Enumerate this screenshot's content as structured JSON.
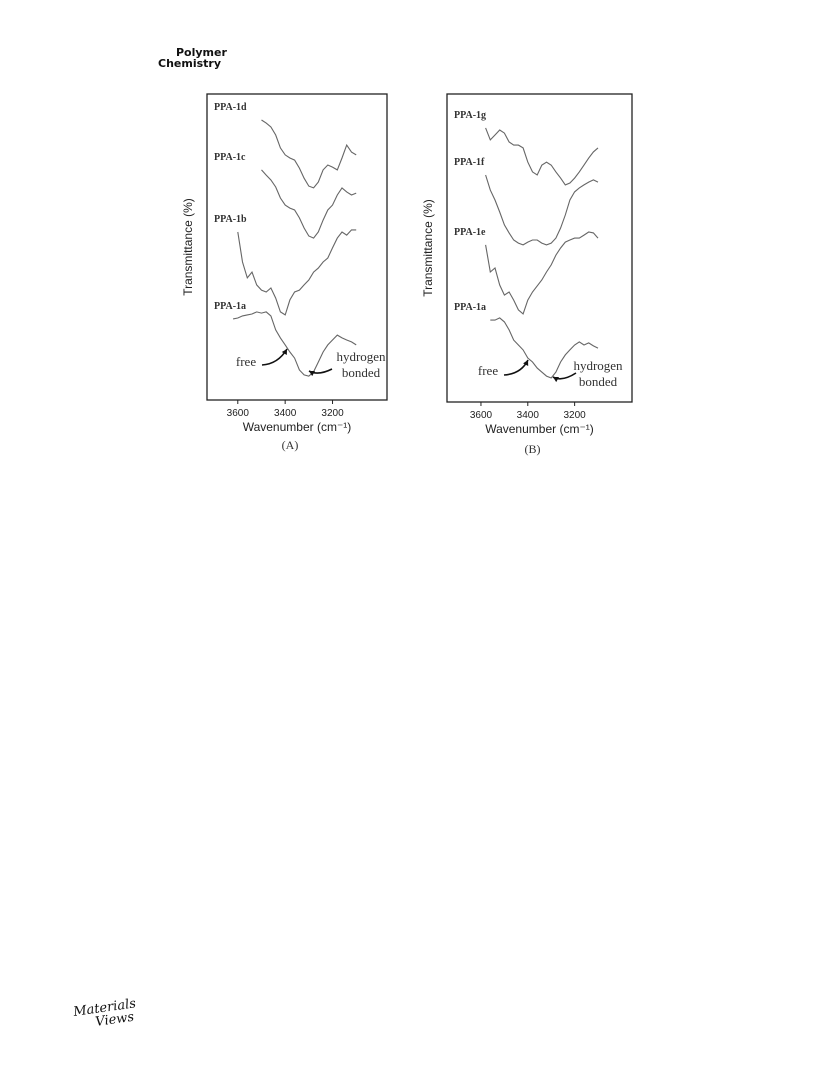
{
  "header": {
    "line1": "Polymer",
    "line2": "Chemistry"
  },
  "footer": {
    "logo_line1": "Materials",
    "logo_line2": "Views"
  },
  "chart_data": [
    {
      "type": "line",
      "caption": "(A)",
      "x_label": "Wavenumber (cm⁻¹)",
      "y_label": "Transmittance (%)",
      "xlim": [
        3730,
        2970
      ],
      "xticks": [
        3600,
        3400,
        3200
      ],
      "ylim": [
        0,
        100
      ],
      "x": [
        3620,
        3600,
        3580,
        3560,
        3540,
        3520,
        3500,
        3480,
        3460,
        3440,
        3420,
        3400,
        3380,
        3360,
        3340,
        3320,
        3300,
        3280,
        3260,
        3240,
        3220,
        3200,
        3180,
        3160,
        3140,
        3120,
        3100
      ],
      "series": [
        {
          "name": "PPA-1d",
          "color": "#666666",
          "values": [
            null,
            null,
            null,
            null,
            null,
            null,
            91.5,
            90.5,
            89.2,
            86.6,
            82.4,
            80.1,
            79.1,
            78.4,
            75.8,
            72.5,
            69.9,
            69.3,
            71.2,
            75.2,
            76.8,
            76.1,
            75.2,
            79.1,
            83.3,
            81.0,
            80.1
          ]
        },
        {
          "name": "PPA-1c",
          "color": "#666666",
          "values": [
            null,
            null,
            null,
            null,
            null,
            null,
            75.2,
            73.5,
            71.9,
            69.6,
            66.0,
            63.7,
            62.7,
            62.1,
            59.5,
            56.2,
            53.6,
            52.9,
            54.9,
            58.8,
            62.1,
            63.7,
            67.0,
            69.3,
            68.0,
            67.0,
            67.6
          ]
        },
        {
          "name": "PPA-1b",
          "color": "#666666",
          "values": [
            null,
            54.9,
            45.1,
            39.9,
            41.8,
            37.6,
            35.9,
            35.3,
            36.6,
            33.3,
            28.8,
            27.8,
            32.7,
            35.3,
            35.9,
            37.6,
            39.2,
            41.8,
            43.1,
            45.1,
            46.4,
            49.7,
            52.9,
            54.9,
            53.9,
            55.6,
            55.6
          ]
        },
        {
          "name": "PPA-1a",
          "color": "#666666",
          "values": [
            26.5,
            26.8,
            27.5,
            27.8,
            28.1,
            28.8,
            28.4,
            28.8,
            27.5,
            22.9,
            20.3,
            18.0,
            15.7,
            13.7,
            9.8,
            8.2,
            7.8,
            9.2,
            12.4,
            15.7,
            18.0,
            19.6,
            21.2,
            20.3,
            19.6,
            19.0,
            18.0
          ]
        }
      ],
      "annotations": [
        "free",
        "hydrogen",
        "bonded"
      ]
    },
    {
      "type": "line",
      "caption": "(B)",
      "x_label": "Wavenumber (cm⁻¹)",
      "y_label": "Transmittance (%)",
      "xlim": [
        3745,
        2955
      ],
      "xticks": [
        3600,
        3400,
        3200
      ],
      "ylim": [
        0,
        100
      ],
      "x": [
        3600,
        3580,
        3560,
        3540,
        3520,
        3500,
        3480,
        3460,
        3440,
        3420,
        3400,
        3380,
        3360,
        3340,
        3320,
        3300,
        3280,
        3260,
        3240,
        3220,
        3200,
        3180,
        3160,
        3140,
        3120,
        3100
      ],
      "series": [
        {
          "name": "PPA-1g",
          "color": "#666666",
          "values": [
            null,
            89.0,
            85.1,
            86.7,
            88.3,
            87.3,
            84.4,
            83.4,
            83.4,
            82.5,
            77.9,
            74.7,
            73.7,
            76.9,
            77.9,
            76.9,
            74.7,
            72.7,
            70.5,
            71.1,
            72.7,
            74.7,
            76.9,
            79.2,
            81.2,
            82.5
          ]
        },
        {
          "name": "PPA-1f",
          "color": "#666666",
          "values": [
            null,
            73.7,
            68.8,
            65.6,
            61.7,
            57.5,
            54.9,
            52.6,
            51.6,
            51.0,
            51.9,
            52.6,
            52.6,
            51.6,
            51.0,
            51.6,
            53.2,
            56.5,
            60.7,
            65.6,
            68.2,
            69.5,
            70.5,
            71.4,
            72.1,
            71.4
          ]
        },
        {
          "name": "PPA-1e",
          "color": "#666666",
          "values": [
            null,
            51.0,
            42.2,
            43.5,
            38.0,
            34.7,
            35.7,
            33.1,
            29.9,
            28.6,
            33.1,
            35.7,
            37.7,
            39.6,
            42.2,
            44.5,
            47.7,
            50.0,
            51.9,
            52.6,
            53.2,
            53.2,
            54.2,
            55.2,
            54.9,
            53.2
          ]
        },
        {
          "name": "PPA-1a",
          "color": "#666666",
          "values": [
            null,
            null,
            26.6,
            26.6,
            27.3,
            26.0,
            23.4,
            20.1,
            18.5,
            16.9,
            14.3,
            13.0,
            11.0,
            9.7,
            8.4,
            7.8,
            9.7,
            13.0,
            15.3,
            16.9,
            18.5,
            19.5,
            18.5,
            19.2,
            18.2,
            17.5
          ]
        }
      ],
      "annotations": [
        "free",
        "hydrogen",
        "bonded"
      ]
    }
  ]
}
